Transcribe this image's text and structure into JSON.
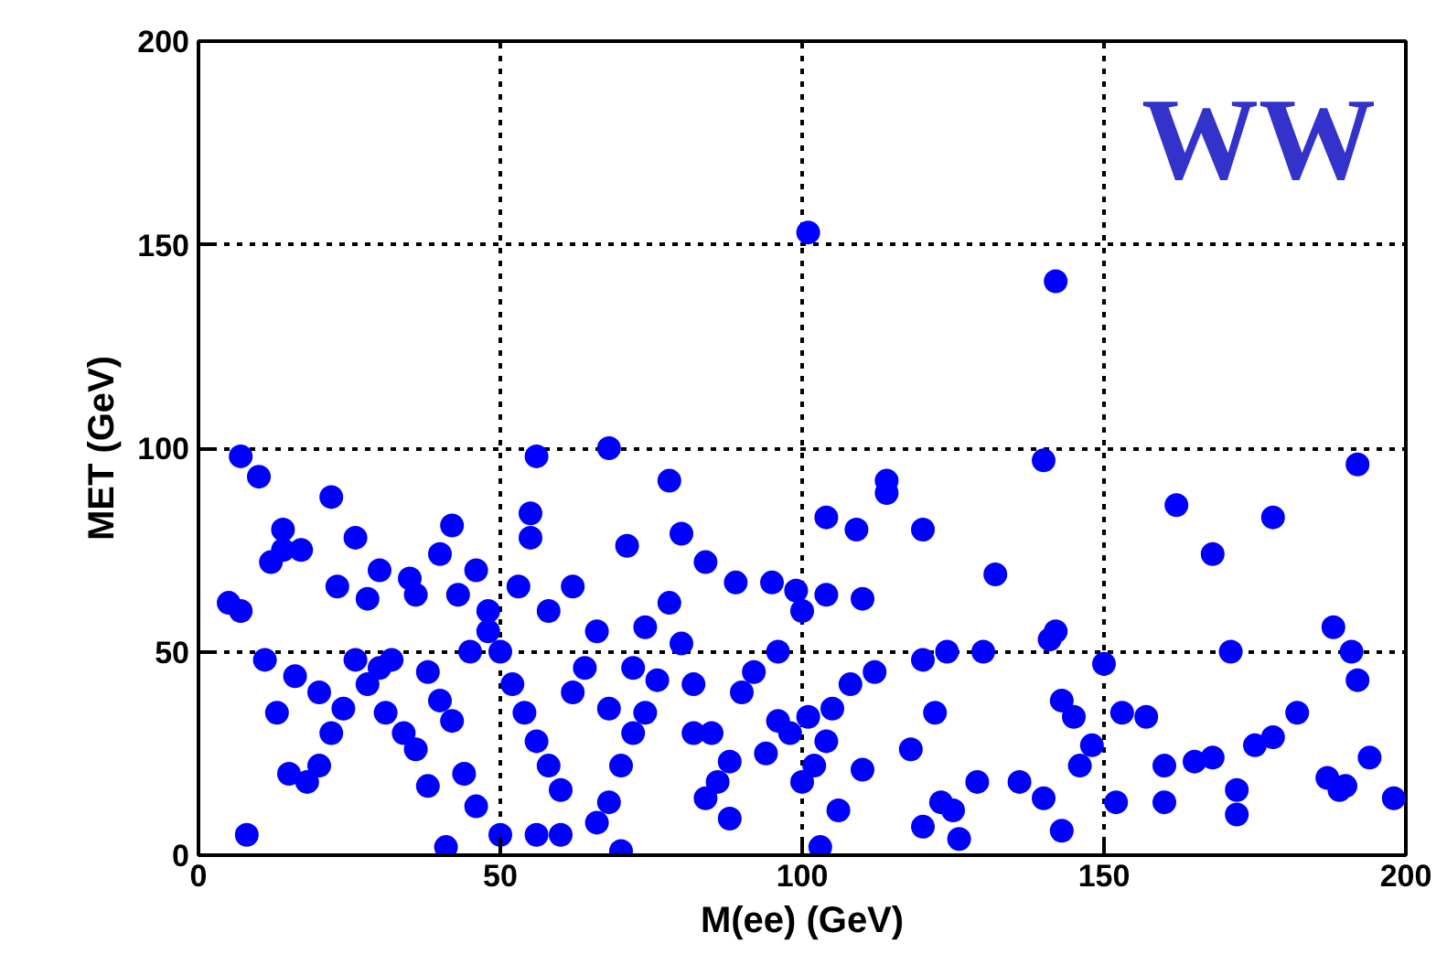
{
  "chart_data": {
    "type": "scatter",
    "xlabel": "M(ee) (GeV)",
    "ylabel": "MET (GeV)",
    "annotations": [
      "WW"
    ],
    "xlim": [
      0,
      200
    ],
    "ylim": [
      0,
      200
    ],
    "xticks": [
      0,
      50,
      100,
      150,
      200
    ],
    "yticks": [
      0,
      50,
      100,
      150,
      200
    ],
    "grid": true,
    "marker": "circle",
    "series": [
      {
        "color": "#0000ff",
        "x": [
          101,
          142,
          140,
          192,
          68,
          56,
          7,
          10,
          162,
          178,
          168,
          114,
          114,
          104,
          109,
          120,
          132,
          78,
          22,
          42,
          55,
          55,
          40,
          14,
          26,
          14,
          17,
          12,
          30,
          5,
          7,
          35,
          46,
          71,
          80,
          84,
          95,
          99,
          104,
          89,
          62,
          53,
          58,
          48,
          36,
          23,
          28,
          43,
          110,
          100,
          142,
          150,
          171,
          188,
          191,
          192,
          182,
          178,
          175,
          168,
          160,
          157,
          153,
          145,
          141,
          143,
          148,
          146,
          140,
          136,
          129,
          152,
          160,
          165,
          172,
          172,
          143,
          187,
          190,
          189,
          194,
          198,
          130,
          124,
          120,
          122,
          118,
          120,
          125,
          126,
          123,
          112,
          108,
          105,
          104,
          102,
          110,
          106,
          103,
          101,
          96,
          94,
          88,
          86,
          85,
          82,
          80,
          76,
          74,
          72,
          70,
          68,
          66,
          70,
          60,
          56,
          50,
          46,
          44,
          41,
          38,
          36,
          34,
          31,
          28,
          26,
          24,
          22,
          20,
          18,
          15,
          13,
          11,
          8,
          16,
          20,
          30,
          32,
          38,
          40,
          42,
          45,
          48,
          50,
          52,
          54,
          56,
          58,
          60,
          62,
          64,
          66,
          68,
          72,
          74,
          78,
          82,
          84,
          88,
          90,
          92,
          96,
          98,
          100
        ],
        "values": [
          153,
          141,
          97,
          96,
          100,
          98,
          98,
          93,
          86,
          83,
          74,
          92,
          89,
          83,
          80,
          80,
          69,
          92,
          88,
          81,
          84,
          78,
          74,
          80,
          78,
          75,
          75,
          72,
          70,
          62,
          60,
          68,
          70,
          76,
          79,
          72,
          67,
          65,
          64,
          67,
          66,
          66,
          60,
          60,
          64,
          66,
          63,
          64,
          63,
          60,
          55,
          47,
          50,
          56,
          50,
          43,
          35,
          29,
          27,
          24,
          22,
          34,
          35,
          34,
          53,
          38,
          27,
          22,
          14,
          18,
          18,
          13,
          13,
          23,
          16,
          10,
          6,
          19,
          17,
          16,
          24,
          14,
          50,
          50,
          48,
          35,
          26,
          7,
          11,
          4,
          13,
          45,
          42,
          36,
          28,
          22,
          21,
          11,
          2,
          34,
          33,
          25,
          23,
          18,
          30,
          42,
          52,
          43,
          35,
          30,
          22,
          13,
          8,
          1,
          5,
          5,
          5,
          12,
          20,
          2,
          17,
          26,
          30,
          35,
          42,
          48,
          36,
          30,
          22,
          18,
          20,
          35,
          48,
          5,
          44,
          40,
          46,
          48,
          45,
          38,
          33,
          50,
          55,
          50,
          42,
          35,
          28,
          22,
          16,
          40,
          46,
          55,
          36,
          46,
          56,
          62,
          30,
          14,
          9,
          40,
          45,
          50,
          30,
          18
        ]
      }
    ]
  }
}
